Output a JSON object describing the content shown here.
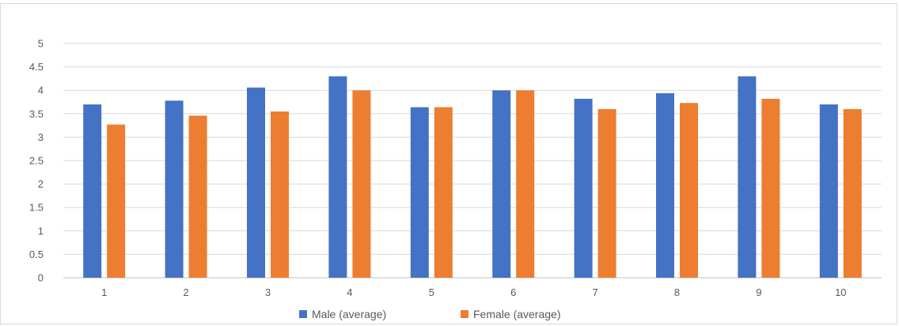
{
  "chart_data": {
    "type": "bar",
    "title": "",
    "xlabel": "",
    "ylabel": "",
    "categories": [
      "1",
      "2",
      "3",
      "4",
      "5",
      "6",
      "7",
      "8",
      "9",
      "10"
    ],
    "series": [
      {
        "name": "Male (average)",
        "color": "#4472C4",
        "values": [
          3.7,
          3.78,
          4.06,
          4.3,
          3.64,
          4.0,
          3.82,
          3.94,
          4.3,
          3.7
        ]
      },
      {
        "name": "Female (average)",
        "color": "#ED7D31",
        "values": [
          3.27,
          3.46,
          3.55,
          4.0,
          3.64,
          4.0,
          3.6,
          3.73,
          3.82,
          3.6
        ]
      }
    ],
    "ylim": [
      0,
      5
    ],
    "yticks": [
      "0",
      "0.5",
      "1",
      "1.5",
      "2",
      "2.5",
      "3",
      "3.5",
      "4",
      "4.5",
      "5"
    ],
    "grid": true,
    "legend_position": "bottom"
  }
}
